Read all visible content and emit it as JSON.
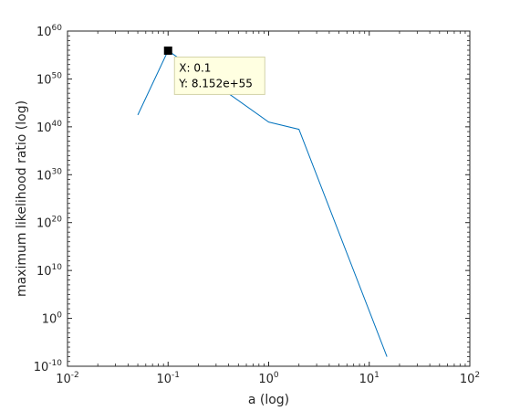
{
  "chart_data": {
    "type": "line",
    "title": "",
    "xlabel": "a (log)",
    "ylabel": "maximum likelihood ratio (log)",
    "xscale": "log",
    "yscale": "log",
    "xlim": [
      0.01,
      100
    ],
    "ylim": [
      1e-10,
      1e+60
    ],
    "grid": false,
    "x_ticks": [
      {
        "value": 0.01,
        "base": "10",
        "exp": "-2"
      },
      {
        "value": 0.1,
        "base": "10",
        "exp": "-1"
      },
      {
        "value": 1,
        "base": "10",
        "exp": "0"
      },
      {
        "value": 10,
        "base": "10",
        "exp": "1"
      },
      {
        "value": 100,
        "base": "10",
        "exp": "2"
      }
    ],
    "y_ticks": [
      {
        "value": 1e-10,
        "base": "10",
        "exp": "-10"
      },
      {
        "value": 1,
        "base": "10",
        "exp": "0"
      },
      {
        "value": 10000000000.0,
        "base": "10",
        "exp": "10"
      },
      {
        "value": 1e+20,
        "base": "10",
        "exp": "20"
      },
      {
        "value": 1e+30,
        "base": "10",
        "exp": "30"
      },
      {
        "value": 1e+40,
        "base": "10",
        "exp": "40"
      },
      {
        "value": 1e+50,
        "base": "10",
        "exp": "50"
      },
      {
        "value": 1e+60,
        "base": "10",
        "exp": "60"
      }
    ],
    "series": [
      {
        "color": "#0072bd",
        "x": [
          0.05,
          0.1,
          1,
          2,
          15
        ],
        "y": [
          3e+42,
          8.152e+55,
          1e+41,
          3e+39,
          1e-08
        ]
      }
    ],
    "datatip": {
      "x": 0.1,
      "y": 8.152e+55,
      "x_text": "X: 0.1",
      "y_text": "Y: 8.152e+55"
    }
  }
}
